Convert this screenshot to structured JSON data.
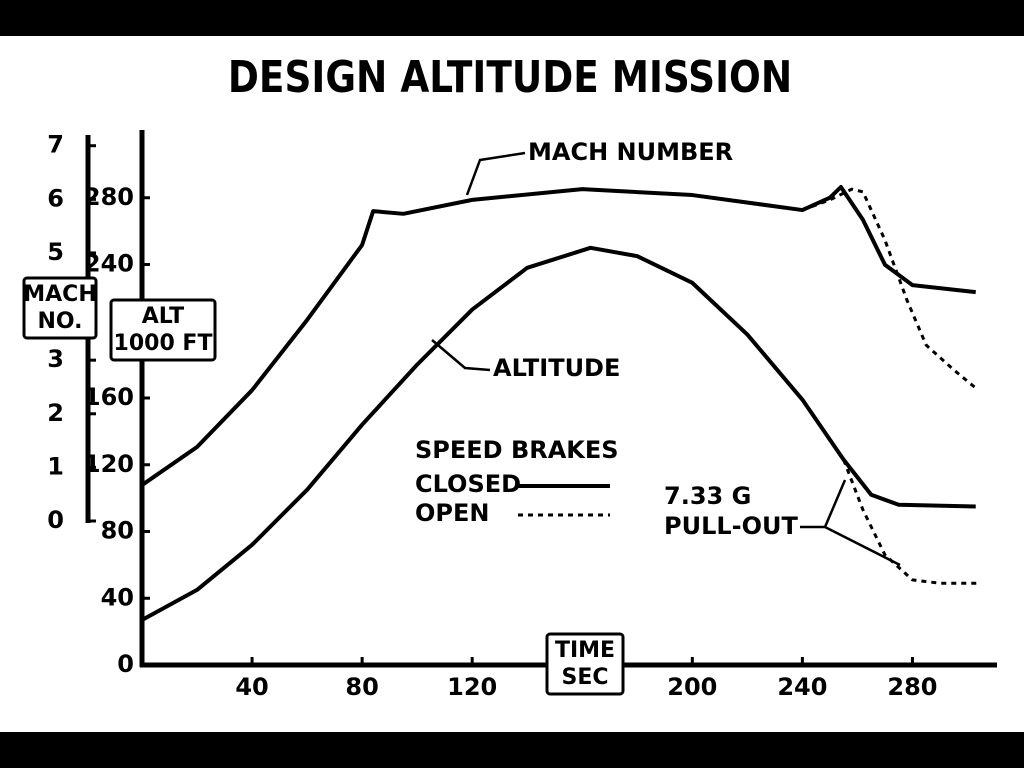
{
  "chart_data": {
    "type": "line",
    "title": "DESIGN ALTITUDE MISSION",
    "x_label": [
      "TIME",
      "SEC"
    ],
    "y_label": [
      "ALT",
      "1000 FT"
    ],
    "y2_label": [
      "MACH",
      "NO."
    ],
    "xlim": [
      0,
      310
    ],
    "xticks": [
      40,
      80,
      120,
      200,
      240,
      280
    ],
    "ylim": [
      0,
      320
    ],
    "yticks": [
      0,
      40,
      80,
      120,
      160,
      240,
      280
    ],
    "y2lim": [
      0,
      7.2
    ],
    "y2ticks": [
      0,
      1,
      2,
      3,
      5,
      6,
      7
    ],
    "series": [
      {
        "name": "MACH NUMBER",
        "axis": "y2",
        "dash": "solid",
        "color": "#000000",
        "x": [
          0,
          20,
          40,
          60,
          80,
          84,
          95,
          120,
          160,
          200,
          240,
          250,
          254,
          262,
          270,
          280,
          303
        ],
        "values": [
          0.67,
          1.38,
          2.44,
          3.75,
          5.15,
          5.78,
          5.73,
          5.99,
          6.19,
          6.08,
          5.8,
          6.03,
          6.23,
          5.62,
          4.78,
          4.4,
          4.27
        ]
      },
      {
        "axis": "y2",
        "dash": "dotted",
        "color": "#000000",
        "x": [
          240,
          250,
          258,
          262,
          270,
          278,
          285,
          295,
          303
        ],
        "values": [
          5.8,
          5.99,
          6.19,
          6.14,
          5.24,
          4.12,
          3.28,
          2.82,
          2.48
        ]
      },
      {
        "name": "ALTITUDE",
        "axis": "y",
        "dash": "solid",
        "color": "#000000",
        "x": [
          0,
          20,
          40,
          60,
          80,
          100,
          120,
          140,
          163,
          180,
          200,
          220,
          240,
          255,
          265,
          275,
          303
        ],
        "values": [
          27,
          45,
          72,
          105,
          144,
          180,
          213,
          238,
          250,
          245,
          229,
          198,
          159,
          123,
          102,
          96,
          95
        ]
      },
      {
        "axis": "y",
        "dash": "dotted",
        "color": "#000000",
        "x": [
          255,
          262,
          270,
          280,
          290,
          305
        ],
        "values": [
          123,
          93,
          66,
          51,
          49,
          49
        ]
      }
    ],
    "legend": {
      "title": "SPEED BRAKES",
      "entries": [
        {
          "label": "CLOSED",
          "dash": "solid"
        },
        {
          "label": "OPEN",
          "dash": "dotted"
        }
      ]
    },
    "annotation": [
      "7.33 G",
      "PULL-OUT"
    ]
  }
}
